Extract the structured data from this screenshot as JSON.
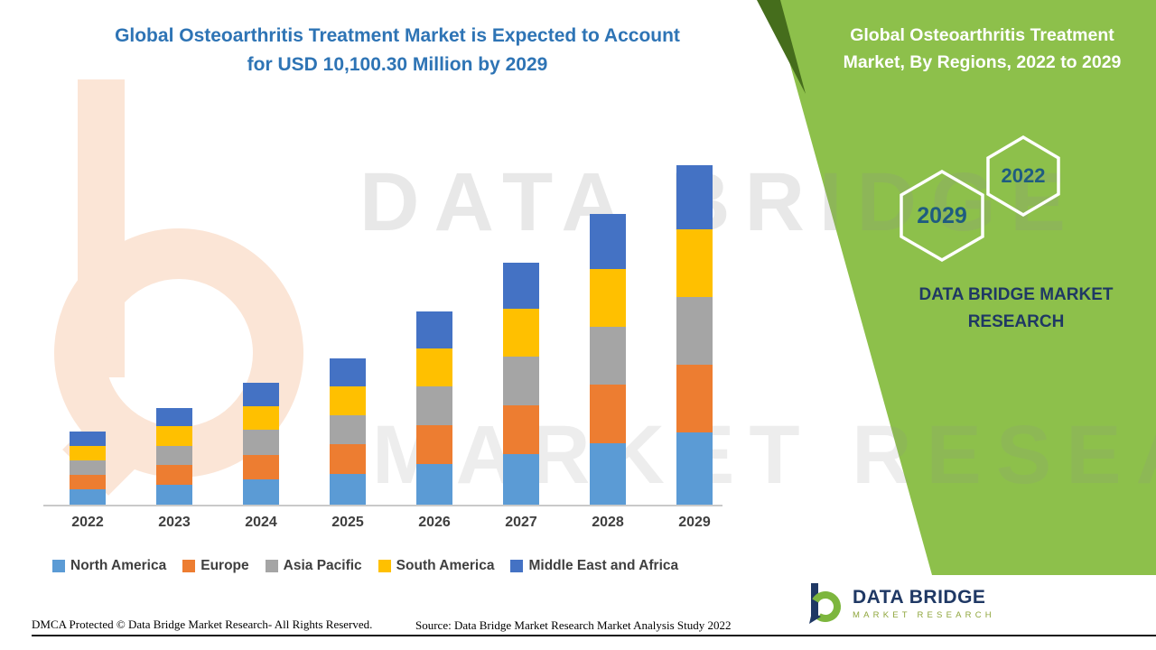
{
  "header": {
    "title_line1": "Global Osteoarthritis Treatment Market is Expected to Account",
    "title_line2": "for USD 10,100.30 Million by 2029"
  },
  "side_panel": {
    "accent_color": "#8DC04B",
    "accent_dark_color": "#456D1C",
    "title_line1": "Global Osteoarthritis Treatment",
    "title_line2": "Market, By Regions, 2022 to 2029",
    "hexagons": [
      {
        "label": "2029"
      },
      {
        "label": "2022"
      }
    ],
    "brand_line1": "DATA BRIDGE MARKET",
    "brand_line2": "RESEARCH"
  },
  "chart_data": {
    "type": "bar",
    "stacked": true,
    "title": "Global Osteoarthritis Treatment Market, By Regions, 2022 to 2029",
    "xlabel": "",
    "ylabel": "",
    "unit": "USD Million",
    "grid": false,
    "legend_position": "bottom",
    "ylim": [
      0,
      10500
    ],
    "categories": [
      "2022",
      "2023",
      "2024",
      "2025",
      "2026",
      "2027",
      "2028",
      "2029"
    ],
    "series": [
      {
        "name": "North America",
        "color": "#5B9BD5",
        "values": [
          470,
          620,
          780,
          940,
          1230,
          1540,
          1850,
          2160
        ]
      },
      {
        "name": "Europe",
        "color": "#ED7D31",
        "values": [
          440,
          580,
          730,
          875,
          1150,
          1440,
          1730,
          2020
        ]
      },
      {
        "name": "Asia Pacific",
        "color": "#A5A5A5",
        "values": [
          440,
          580,
          730,
          875,
          1150,
          1440,
          1730,
          2020
        ]
      },
      {
        "name": "South America",
        "color": "#FFC000",
        "values": [
          430,
          570,
          710,
          860,
          1130,
          1420,
          1700,
          1990
        ]
      },
      {
        "name": "Middle East and Africa",
        "color": "#4472C4",
        "values": [
          420,
          550,
          700,
          820,
          1100,
          1370,
          1650,
          1910.3
        ]
      }
    ],
    "totals": [
      2200,
      2900,
      3650,
      4370,
      5760,
      7210,
      8660,
      10100.3
    ],
    "highlight_total_2029": "USD 10,100.30 Million"
  },
  "watermark": {
    "line1": "DATA BRIDGE",
    "line2": "MARKET RESEARCH"
  },
  "footer": {
    "dmca": "DMCA Protected © Data Bridge Market Research- All Rights Reserved.",
    "source": "Source: Data Bridge Market Research Market Analysis Study 2022"
  },
  "logo": {
    "title": "DATA BRIDGE",
    "subtitle": "MARKET RESEARCH"
  }
}
